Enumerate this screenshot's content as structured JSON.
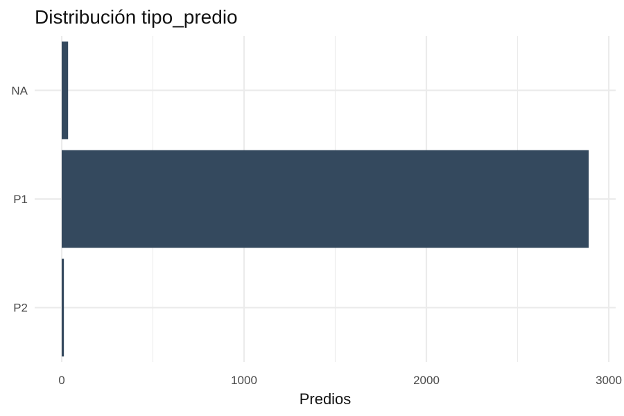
{
  "chart_data": {
    "type": "bar",
    "orientation": "horizontal",
    "title": "Distribución tipo_predio",
    "xlabel": "Predios",
    "ylabel": "",
    "categories": [
      "NA",
      "P1",
      "P2"
    ],
    "values": [
      35,
      2890,
      12
    ],
    "xlim": [
      0,
      3000
    ],
    "xticks": [
      0,
      1000,
      2000,
      3000
    ],
    "bar_color": "#34495E",
    "grid": true,
    "legend": "none"
  }
}
